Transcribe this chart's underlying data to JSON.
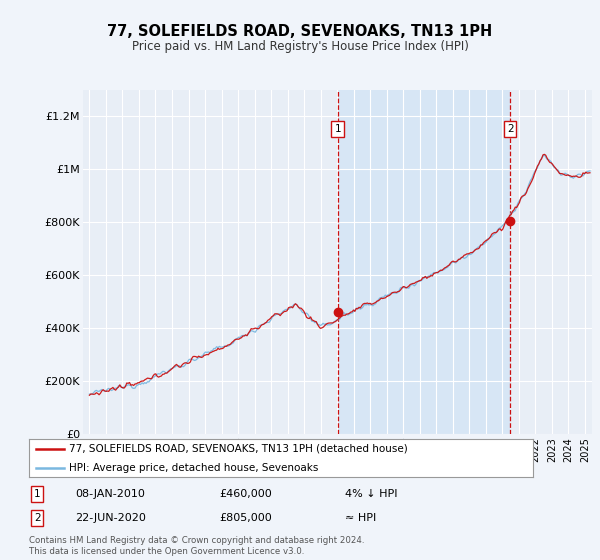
{
  "title": "77, SOLEFIELDS ROAD, SEVENOAKS, TN13 1PH",
  "subtitle": "Price paid vs. HM Land Registry's House Price Index (HPI)",
  "ylabel_ticks": [
    "£0",
    "£200K",
    "£400K",
    "£600K",
    "£800K",
    "£1M",
    "£1.2M"
  ],
  "ytick_values": [
    0,
    200000,
    400000,
    600000,
    800000,
    1000000,
    1200000
  ],
  "ylim": [
    0,
    1300000
  ],
  "xlim_start": 1994.6,
  "xlim_end": 2025.4,
  "hpi_color": "#7ab8e0",
  "price_color": "#cc1111",
  "shade_color": "#d0e4f5",
  "marker1_x": 2010.03,
  "marker1_y": 460000,
  "marker2_x": 2020.47,
  "marker2_y": 805000,
  "annotation1_date": "08-JAN-2010",
  "annotation1_price": "£460,000",
  "annotation1_rel": "4% ↓ HPI",
  "annotation2_date": "22-JUN-2020",
  "annotation2_price": "£805,000",
  "annotation2_rel": "≈ HPI",
  "legend_line1": "77, SOLEFIELDS ROAD, SEVENOAKS, TN13 1PH (detached house)",
  "legend_line2": "HPI: Average price, detached house, Sevenoaks",
  "footer": "Contains HM Land Registry data © Crown copyright and database right 2024.\nThis data is licensed under the Open Government Licence v3.0.",
  "background_color": "#f0f4fa",
  "plot_bg_color": "#e8eef6"
}
